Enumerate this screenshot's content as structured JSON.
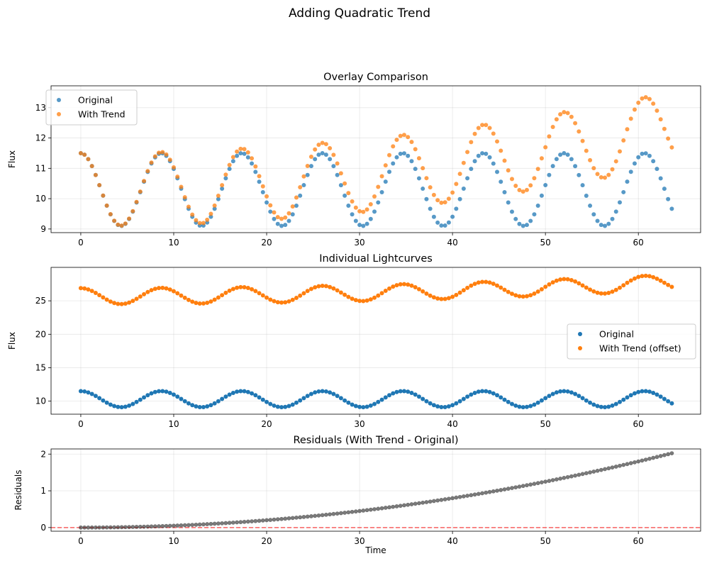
{
  "figure": {
    "suptitle": "Adding Quadratic Trend"
  },
  "chart_data": [
    {
      "type": "scatter",
      "title": "Overlay Comparison",
      "xlabel": "",
      "ylabel": "Flux",
      "xlim": [
        -3.2,
        66.7
      ],
      "ylim": [
        8.88,
        13.72
      ],
      "xticks": [
        0,
        10,
        20,
        30,
        40,
        50,
        60
      ],
      "yticks": [
        9,
        10,
        11,
        12,
        13
      ],
      "grid": true,
      "legend": "top-left",
      "sample": {
        "n": 160,
        "dt": 0.4,
        "period_step": 0.29,
        "baseline": 10.3,
        "amplitude": 1.2,
        "trend_coef": 0.0005
      },
      "series": [
        {
          "name": "Original",
          "kind": "base",
          "color": "#1f77b4",
          "alpha": 0.75,
          "radius": 3
        },
        {
          "name": "With Trend",
          "kind": "trend",
          "color": "#ff7f0e",
          "alpha": 0.75,
          "radius": 3
        }
      ]
    },
    {
      "type": "scatter",
      "title": "Individual Lightcurves",
      "xlabel": "",
      "ylabel": "Flux",
      "xlim": [
        -3.2,
        66.7
      ],
      "ylim": [
        8.05,
        30.0
      ],
      "xticks": [
        0,
        10,
        20,
        30,
        40,
        50,
        60
      ],
      "yticks": [
        10,
        15,
        20,
        25
      ],
      "grid": true,
      "legend": "center-right",
      "sample": {
        "n": 160,
        "dt": 0.4,
        "period_step": 0.29,
        "baseline": 10.3,
        "amplitude": 1.2,
        "trend_coef": 0.0005
      },
      "series": [
        {
          "name": "Original",
          "kind": "base",
          "color": "#1f77b4",
          "alpha": 1,
          "radius": 3
        },
        {
          "name": "With Trend (offset)",
          "kind": "trend_offset",
          "offset": 15.4,
          "color": "#ff7f0e",
          "alpha": 1,
          "radius": 3
        }
      ]
    },
    {
      "type": "scatter",
      "title": "Residuals (With Trend - Original)",
      "xlabel": "Time",
      "ylabel": "Residuals",
      "xlim": [
        -3.2,
        66.7
      ],
      "ylim": [
        -0.1,
        2.14
      ],
      "xticks": [
        0,
        10,
        20,
        30,
        40,
        50,
        60
      ],
      "yticks": [
        0,
        1,
        2
      ],
      "grid": true,
      "reference_line": {
        "y": 0,
        "color": "#ff0000",
        "style": "dashed"
      },
      "sample": {
        "n": 160,
        "dt": 0.4,
        "period_step": 0.29,
        "baseline": 10.3,
        "amplitude": 1.2,
        "trend_coef": 0.0005
      },
      "series": [
        {
          "name": "Residuals",
          "kind": "residual",
          "color": "#222222",
          "alpha": 0.6,
          "radius": 2.6
        }
      ]
    }
  ]
}
